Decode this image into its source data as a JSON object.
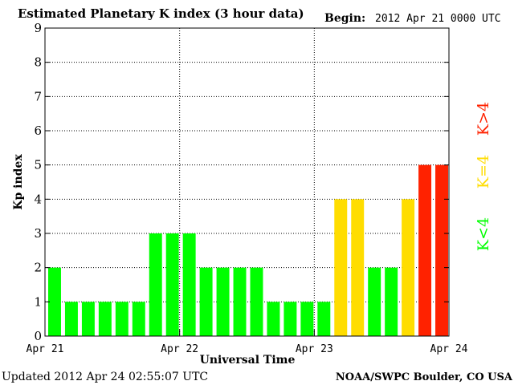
{
  "chart_data": {
    "type": "bar",
    "title": "Estimated Planetary K index (3 hour data)",
    "begin_label": "Begin:",
    "begin_value": "2012 Apr 21 0000 UTC",
    "xlabel": "Universal Time",
    "ylabel": "Kp index",
    "ylim": [
      0,
      9
    ],
    "yticks": [
      "0",
      "1",
      "2",
      "3",
      "4",
      "5",
      "6",
      "7",
      "8",
      "9"
    ],
    "xticks": [
      "Apr 21",
      "Apr 22",
      "Apr 23",
      "Apr 24"
    ],
    "grid": true,
    "values": [
      2,
      1,
      1,
      1,
      1,
      1,
      3,
      3,
      3,
      2,
      2,
      2,
      2,
      1,
      1,
      1,
      1,
      4,
      4,
      2,
      2,
      4,
      5,
      5
    ],
    "bar_colors": [
      "#00ff00",
      "#00ff00",
      "#00ff00",
      "#00ff00",
      "#00ff00",
      "#00ff00",
      "#00ff00",
      "#00ff00",
      "#00ff00",
      "#00ff00",
      "#00ff00",
      "#00ff00",
      "#00ff00",
      "#00ff00",
      "#00ff00",
      "#00ff00",
      "#00ff00",
      "#ffdd00",
      "#ffdd00",
      "#00ff00",
      "#00ff00",
      "#ffdd00",
      "#ff2200",
      "#ff2200"
    ],
    "legend": {
      "placement": "right",
      "entries": [
        {
          "label": "K<4",
          "color": "#00ff00"
        },
        {
          "label": "K=4",
          "color": "#ffdd00"
        },
        {
          "label": "K>4",
          "color": "#ff2200"
        }
      ]
    },
    "footer_left": "Updated 2012 Apr 24 02:55:07 UTC",
    "footer_right": "NOAA/SWPC Boulder, CO USA"
  }
}
